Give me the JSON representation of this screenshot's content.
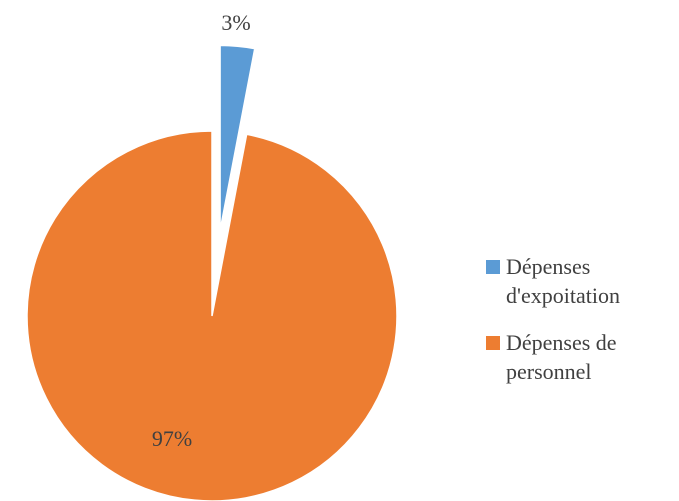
{
  "chart_data": {
    "type": "pie",
    "categories": [
      "Dépenses d'expoitation",
      "Dépenses de personnel"
    ],
    "values": [
      3,
      97
    ],
    "value_labels": [
      "3%",
      "97%"
    ],
    "colors": [
      "#5b9bd5",
      "#ed7d31"
    ],
    "legend": "right"
  }
}
